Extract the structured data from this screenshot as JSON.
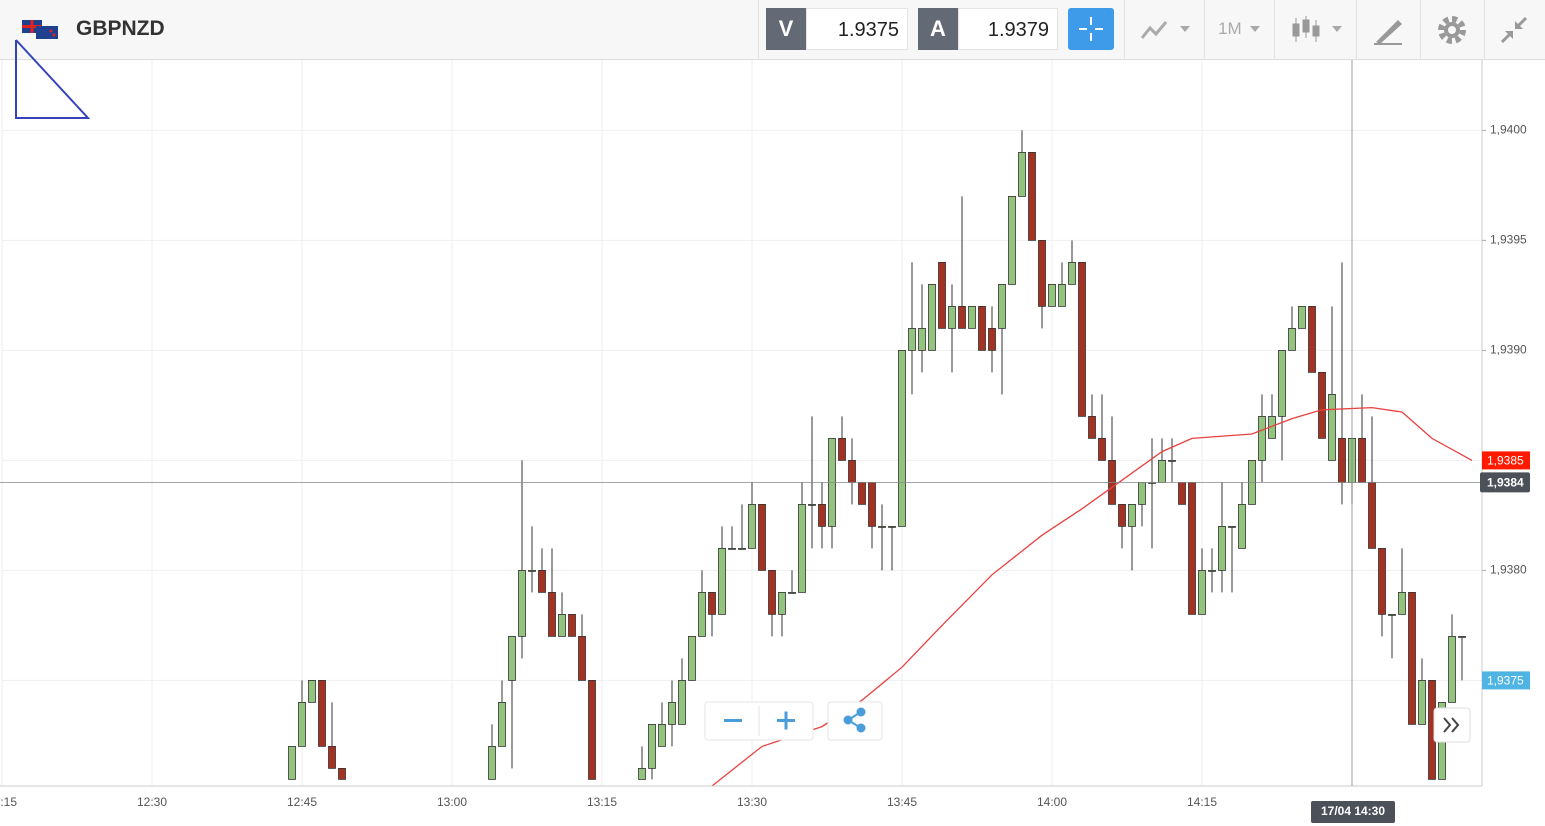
{
  "toolbar": {
    "symbol": "GBPNZD",
    "sell_label": "V",
    "sell_price": "1.9375",
    "buy_label": "A",
    "buy_price": "1.9379",
    "timeframe": "1M"
  },
  "chart_data": {
    "type": "candlestick",
    "x": [
      "12:44",
      "12:45",
      "12:46",
      "12:47",
      "12:48",
      "12:49",
      "13:04",
      "13:05",
      "13:06",
      "13:07",
      "13:08",
      "13:09",
      "13:10",
      "13:11",
      "13:12",
      "13:13",
      "13:14",
      "13:19",
      "13:20",
      "13:21",
      "13:22",
      "13:23",
      "13:24",
      "13:25",
      "13:26",
      "13:27",
      "13:28",
      "13:29",
      "13:30",
      "13:31",
      "13:32",
      "13:33",
      "13:34",
      "13:35",
      "13:36",
      "13:37",
      "13:38",
      "13:39",
      "13:40",
      "13:41",
      "13:42",
      "13:43",
      "13:44",
      "13:45",
      "13:46",
      "13:47",
      "13:48",
      "13:49",
      "13:50",
      "13:51",
      "13:52",
      "13:53",
      "13:54",
      "13:55",
      "13:56",
      "13:57",
      "13:58",
      "13:59",
      "14:00",
      "14:01",
      "14:02",
      "14:03",
      "14:04",
      "14:05",
      "14:06",
      "14:07",
      "14:08",
      "14:09",
      "14:10",
      "14:11",
      "14:12",
      "14:13",
      "14:14",
      "14:15",
      "14:16",
      "14:17",
      "14:18",
      "14:19",
      "14:20",
      "14:21",
      "14:22",
      "14:23",
      "14:24",
      "14:25",
      "14:26",
      "14:27",
      "14:28",
      "14:29",
      "14:30",
      "14:31",
      "14:32",
      "14:33",
      "14:34",
      "14:35",
      "14:36",
      "14:37",
      "14:38",
      "14:39",
      "14:40",
      "14:41"
    ],
    "open": [
      1.93705,
      1.9372,
      1.9374,
      1.9375,
      1.9372,
      1.9371,
      1.93705,
      1.9372,
      1.9375,
      1.9377,
      1.938,
      1.938,
      1.9379,
      1.9377,
      1.9378,
      1.9377,
      1.9375,
      1.93705,
      1.9371,
      1.9372,
      1.9373,
      1.9373,
      1.9375,
      1.9377,
      1.9379,
      1.9378,
      1.9381,
      1.9381,
      1.9381,
      1.9383,
      1.938,
      1.9378,
      1.9379,
      1.9379,
      1.9383,
      1.9383,
      1.9382,
      1.9386,
      1.9385,
      1.9384,
      1.9384,
      1.9382,
      1.9382,
      1.9382,
      1.939,
      1.939,
      1.939,
      1.9394,
      1.9391,
      1.9392,
      1.9391,
      1.9392,
      1.9391,
      1.9391,
      1.9393,
      1.9397,
      1.9399,
      1.9395,
      1.9392,
      1.9392,
      1.9393,
      1.9394,
      1.9387,
      1.9386,
      1.9385,
      1.9383,
      1.9382,
      1.9383,
      1.9384,
      1.9384,
      1.9385,
      1.9384,
      1.9384,
      1.9378,
      1.938,
      1.938,
      1.9382,
      1.9381,
      1.9383,
      1.9385,
      1.9386,
      1.9387,
      1.939,
      1.9391,
      1.9392,
      1.9389,
      1.9385,
      1.9386,
      1.9384,
      1.9386,
      1.9384,
      1.9381,
      1.9378,
      1.9378,
      1.9379,
      1.9373,
      1.9375,
      1.93705,
      1.9374,
      1.9377
    ],
    "high": [
      1.9372,
      1.9375,
      1.9375,
      1.9375,
      1.9374,
      1.9371,
      1.9373,
      1.9375,
      1.9377,
      1.9385,
      1.9382,
      1.9381,
      1.9381,
      1.9379,
      1.9378,
      1.9378,
      1.9375,
      1.9372,
      1.9373,
      1.9374,
      1.9375,
      1.9376,
      1.9377,
      1.938,
      1.9379,
      1.9382,
      1.9382,
      1.9383,
      1.9384,
      1.9383,
      1.938,
      1.9379,
      1.938,
      1.9384,
      1.9387,
      1.9384,
      1.9386,
      1.9387,
      1.9386,
      1.9384,
      1.9384,
      1.9383,
      1.9382,
      1.939,
      1.9394,
      1.9393,
      1.9393,
      1.9394,
      1.9393,
      1.9397,
      1.9392,
      1.9392,
      1.9392,
      1.9393,
      1.9397,
      1.94,
      1.9399,
      1.9395,
      1.9393,
      1.9394,
      1.9395,
      1.9394,
      1.9388,
      1.9388,
      1.9387,
      1.9383,
      1.9383,
      1.9384,
      1.9386,
      1.9386,
      1.9386,
      1.9384,
      1.9384,
      1.9381,
      1.9381,
      1.9384,
      1.9382,
      1.9384,
      1.9385,
      1.9388,
      1.9388,
      1.939,
      1.9392,
      1.9392,
      1.9392,
      1.9389,
      1.9392,
      1.9394,
      1.9386,
      1.9388,
      1.9387,
      1.9381,
      1.9378,
      1.9381,
      1.9379,
      1.9376,
      1.9375,
      1.9374,
      1.9378,
      1.9377
    ],
    "low": [
      1.93705,
      1.9372,
      1.9374,
      1.9372,
      1.9371,
      1.93705,
      1.93705,
      1.9372,
      1.9371,
      1.9376,
      1.9379,
      1.9379,
      1.9377,
      1.9377,
      1.9377,
      1.9375,
      1.93705,
      1.93705,
      1.93705,
      1.9372,
      1.9372,
      1.9373,
      1.9375,
      1.9377,
      1.9377,
      1.9378,
      1.9381,
      1.9381,
      1.9381,
      1.938,
      1.9377,
      1.9377,
      1.9379,
      1.9379,
      1.9381,
      1.9381,
      1.9381,
      1.9385,
      1.9383,
      1.9383,
      1.9381,
      1.938,
      1.938,
      1.9382,
      1.9388,
      1.9389,
      1.939,
      1.9391,
      1.9389,
      1.9391,
      1.9391,
      1.939,
      1.9389,
      1.9388,
      1.9393,
      1.9397,
      1.9395,
      1.9391,
      1.9392,
      1.9392,
      1.9393,
      1.9387,
      1.9386,
      1.9385,
      1.9383,
      1.9381,
      1.938,
      1.9382,
      1.9381,
      1.9384,
      1.9384,
      1.9383,
      1.9378,
      1.9378,
      1.9379,
      1.9379,
      1.9379,
      1.9381,
      1.9383,
      1.9384,
      1.9386,
      1.9385,
      1.939,
      1.9391,
      1.9389,
      1.9386,
      1.9385,
      1.9383,
      1.9383,
      1.9384,
      1.9381,
      1.9377,
      1.9376,
      1.9378,
      1.9373,
      1.9373,
      1.93705,
      1.93705,
      1.9374,
      1.9375
    ],
    "close": [
      1.9372,
      1.9374,
      1.9375,
      1.9372,
      1.9371,
      1.93705,
      1.9372,
      1.9374,
      1.9377,
      1.938,
      1.938,
      1.9379,
      1.9377,
      1.9378,
      1.9377,
      1.9375,
      1.93705,
      1.9371,
      1.9373,
      1.9373,
      1.9374,
      1.9375,
      1.9377,
      1.9379,
      1.9378,
      1.9381,
      1.9381,
      1.9381,
      1.9383,
      1.938,
      1.9378,
      1.9379,
      1.9379,
      1.9383,
      1.9383,
      1.9382,
      1.9386,
      1.9385,
      1.9384,
      1.9383,
      1.9382,
      1.9382,
      1.9382,
      1.939,
      1.9391,
      1.9391,
      1.9393,
      1.9391,
      1.9392,
      1.9391,
      1.9392,
      1.939,
      1.939,
      1.9393,
      1.9397,
      1.9399,
      1.9395,
      1.9392,
      1.9393,
      1.9393,
      1.9394,
      1.9387,
      1.9386,
      1.9385,
      1.9383,
      1.9382,
      1.9383,
      1.9384,
      1.9384,
      1.9385,
      1.9385,
      1.9383,
      1.9378,
      1.938,
      1.938,
      1.9382,
      1.9382,
      1.9383,
      1.9385,
      1.9387,
      1.9387,
      1.939,
      1.9391,
      1.9392,
      1.9389,
      1.9386,
      1.9388,
      1.9384,
      1.9386,
      1.9384,
      1.9381,
      1.9378,
      1.9378,
      1.9379,
      1.9373,
      1.9375,
      1.93705,
      1.9374,
      1.9377,
      1.9377
    ],
    "up_color": "#93c47d",
    "down_color": "#a33222",
    "moving_average": {
      "color": "#e8413f",
      "x": [
        "13:26",
        "13:31",
        "13:37",
        "13:41",
        "13:45",
        "13:49",
        "13:54",
        "13:59",
        "14:03",
        "14:07",
        "14:11",
        "14:14",
        "14:20",
        "14:24",
        "14:27",
        "14:32",
        "14:35",
        "14:38",
        "14:42"
      ],
      "values": [
        1.93702,
        1.9372,
        1.93729,
        1.93741,
        1.93756,
        1.93775,
        1.93798,
        1.93816,
        1.93828,
        1.93841,
        1.93854,
        1.9386,
        1.93862,
        1.93869,
        1.93873,
        1.93874,
        1.93872,
        1.9386,
        1.9385
      ]
    },
    "xlim": [
      "12:15",
      "14:43"
    ],
    "xticks": [
      "12:15",
      "12:30",
      "12:45",
      "13:00",
      "13:15",
      "13:30",
      "13:45",
      "14:00",
      "14:15"
    ],
    "ylim": [
      1.93702,
      1.94032
    ],
    "yticks": [
      {
        "value": 1.94,
        "label": "1,9400"
      },
      {
        "value": 1.9395,
        "label": "1,9395"
      },
      {
        "value": 1.939,
        "label": "1,9390"
      },
      {
        "value": 1.9385,
        "label": "1,9385"
      },
      {
        "value": 1.938,
        "label": "1,9380"
      },
      {
        "value": 1.9375,
        "label": "1,9375"
      }
    ],
    "grid": true,
    "price_tags": [
      {
        "value": 1.9385,
        "label": "1,9385",
        "color": "#ff1a00"
      },
      {
        "value": 1.9375,
        "label": "1,9375",
        "color": "#4fb3e3"
      }
    ],
    "crosshair": {
      "x": "14:30",
      "y": 1.9384,
      "x_label": "17/04 14:30",
      "y_label": "1,9384"
    }
  }
}
